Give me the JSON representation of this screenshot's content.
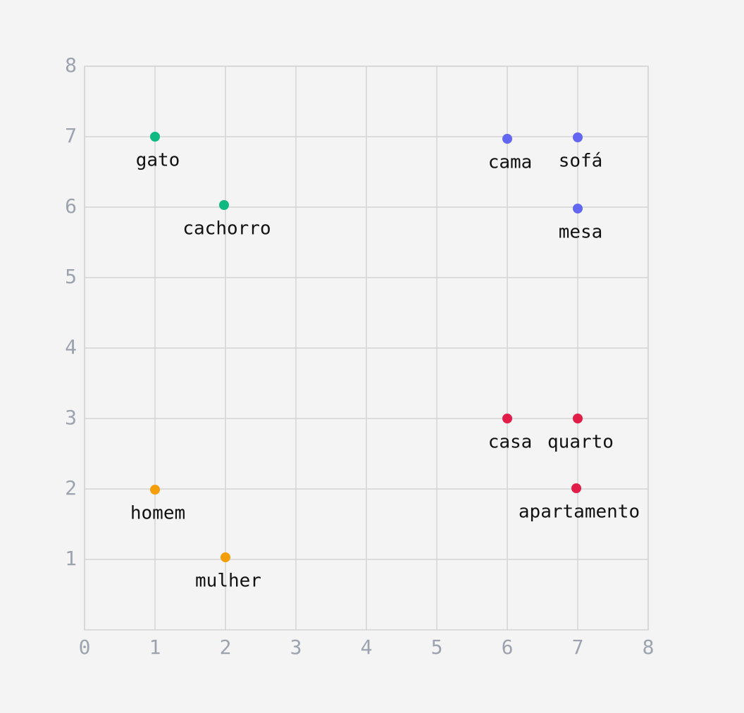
{
  "chart_data": {
    "type": "scatter",
    "xlim": [
      0,
      8
    ],
    "ylim": [
      0,
      8
    ],
    "xticks": [
      0,
      1,
      2,
      3,
      4,
      5,
      6,
      7,
      8
    ],
    "yticks": [
      1,
      2,
      3,
      4,
      5,
      6,
      7,
      8
    ],
    "grid": true,
    "series": [
      {
        "color": "#10b981",
        "x": [
          1,
          1.98
        ],
        "values": [
          7,
          6.03
        ],
        "labels": [
          "gato",
          "cachorro"
        ]
      },
      {
        "color": "#6366f1",
        "x": [
          6,
          7,
          7
        ],
        "values": [
          6.97,
          6.99,
          5.98
        ],
        "labels": [
          "cama",
          "sofá",
          "mesa"
        ]
      },
      {
        "color": "#e11d48",
        "x": [
          6,
          7,
          6.98
        ],
        "values": [
          3,
          3,
          2.01
        ],
        "labels": [
          "casa",
          "quarto",
          "apartamento"
        ]
      },
      {
        "color": "#f59e0b",
        "x": [
          1,
          2
        ],
        "values": [
          1.99,
          1.03
        ],
        "labels": [
          "homem",
          "mulher"
        ]
      }
    ]
  }
}
